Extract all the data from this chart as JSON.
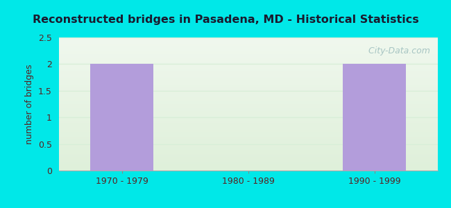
{
  "title": "Reconstructed bridges in Pasadena, MD - Historical Statistics",
  "categories": [
    "1970 - 1979",
    "1980 - 1989",
    "1990 - 1999"
  ],
  "values": [
    2,
    0,
    2
  ],
  "bar_color": "#b39ddb",
  "ylabel": "number of bridges",
  "ylim": [
    0,
    2.5
  ],
  "yticks": [
    0,
    0.5,
    1,
    1.5,
    2,
    2.5
  ],
  "background_outer": "#00e8e8",
  "grid_color": "#d8eed8",
  "title_color": "#1a1a2e",
  "axis_label_color": "#5a2020",
  "tick_label_color": "#5a2020",
  "watermark": "  City-Data.com",
  "watermark_color": "#9bbcbc"
}
